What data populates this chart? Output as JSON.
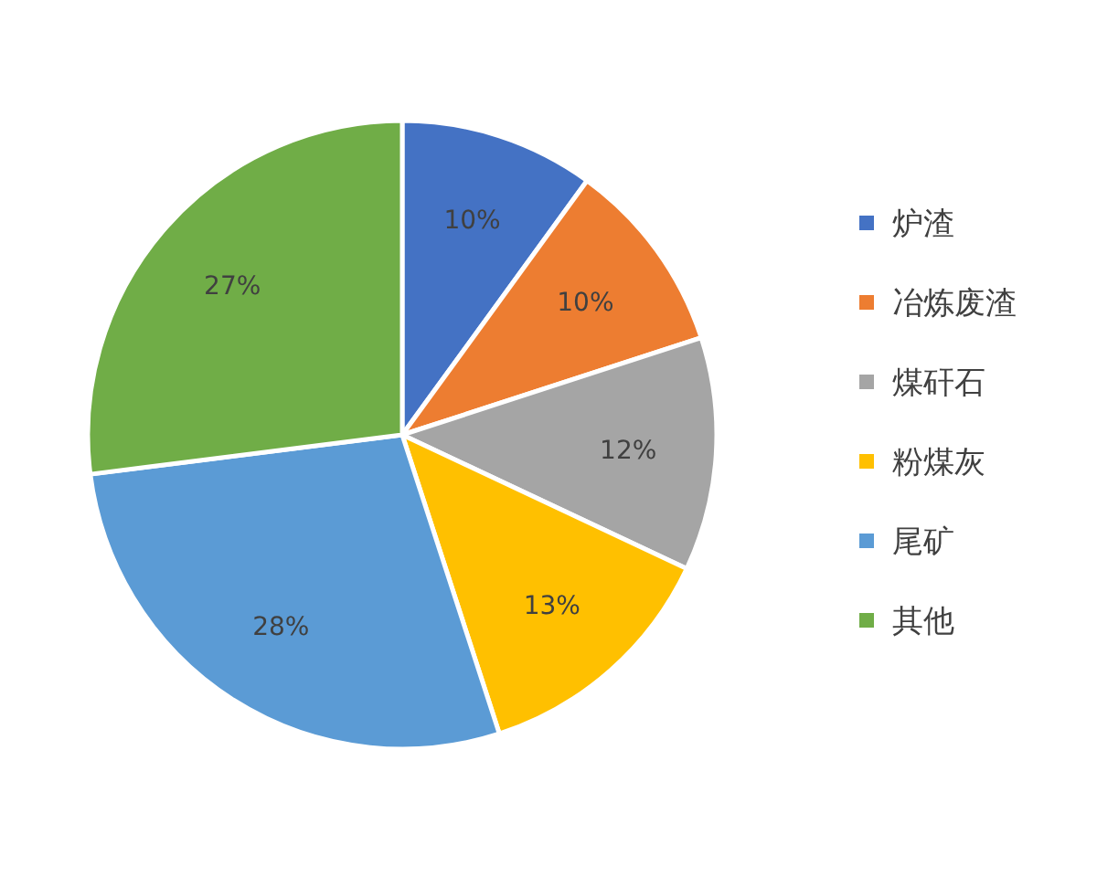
{
  "chart_data": {
    "type": "pie",
    "categories": [
      "炉渣",
      "冶炼废渣",
      "煤矸石",
      "粉煤灰",
      "尾矿",
      "其他"
    ],
    "values": [
      10,
      10,
      12,
      13,
      28,
      27
    ],
    "colors": [
      "#4472c4",
      "#ed7d31",
      "#a5a5a5",
      "#ffc000",
      "#5b9bd5",
      "#70ad47"
    ],
    "value_labels": [
      "10%",
      "10%",
      "12%",
      "13%",
      "28%",
      "27%"
    ],
    "legend": "right"
  }
}
